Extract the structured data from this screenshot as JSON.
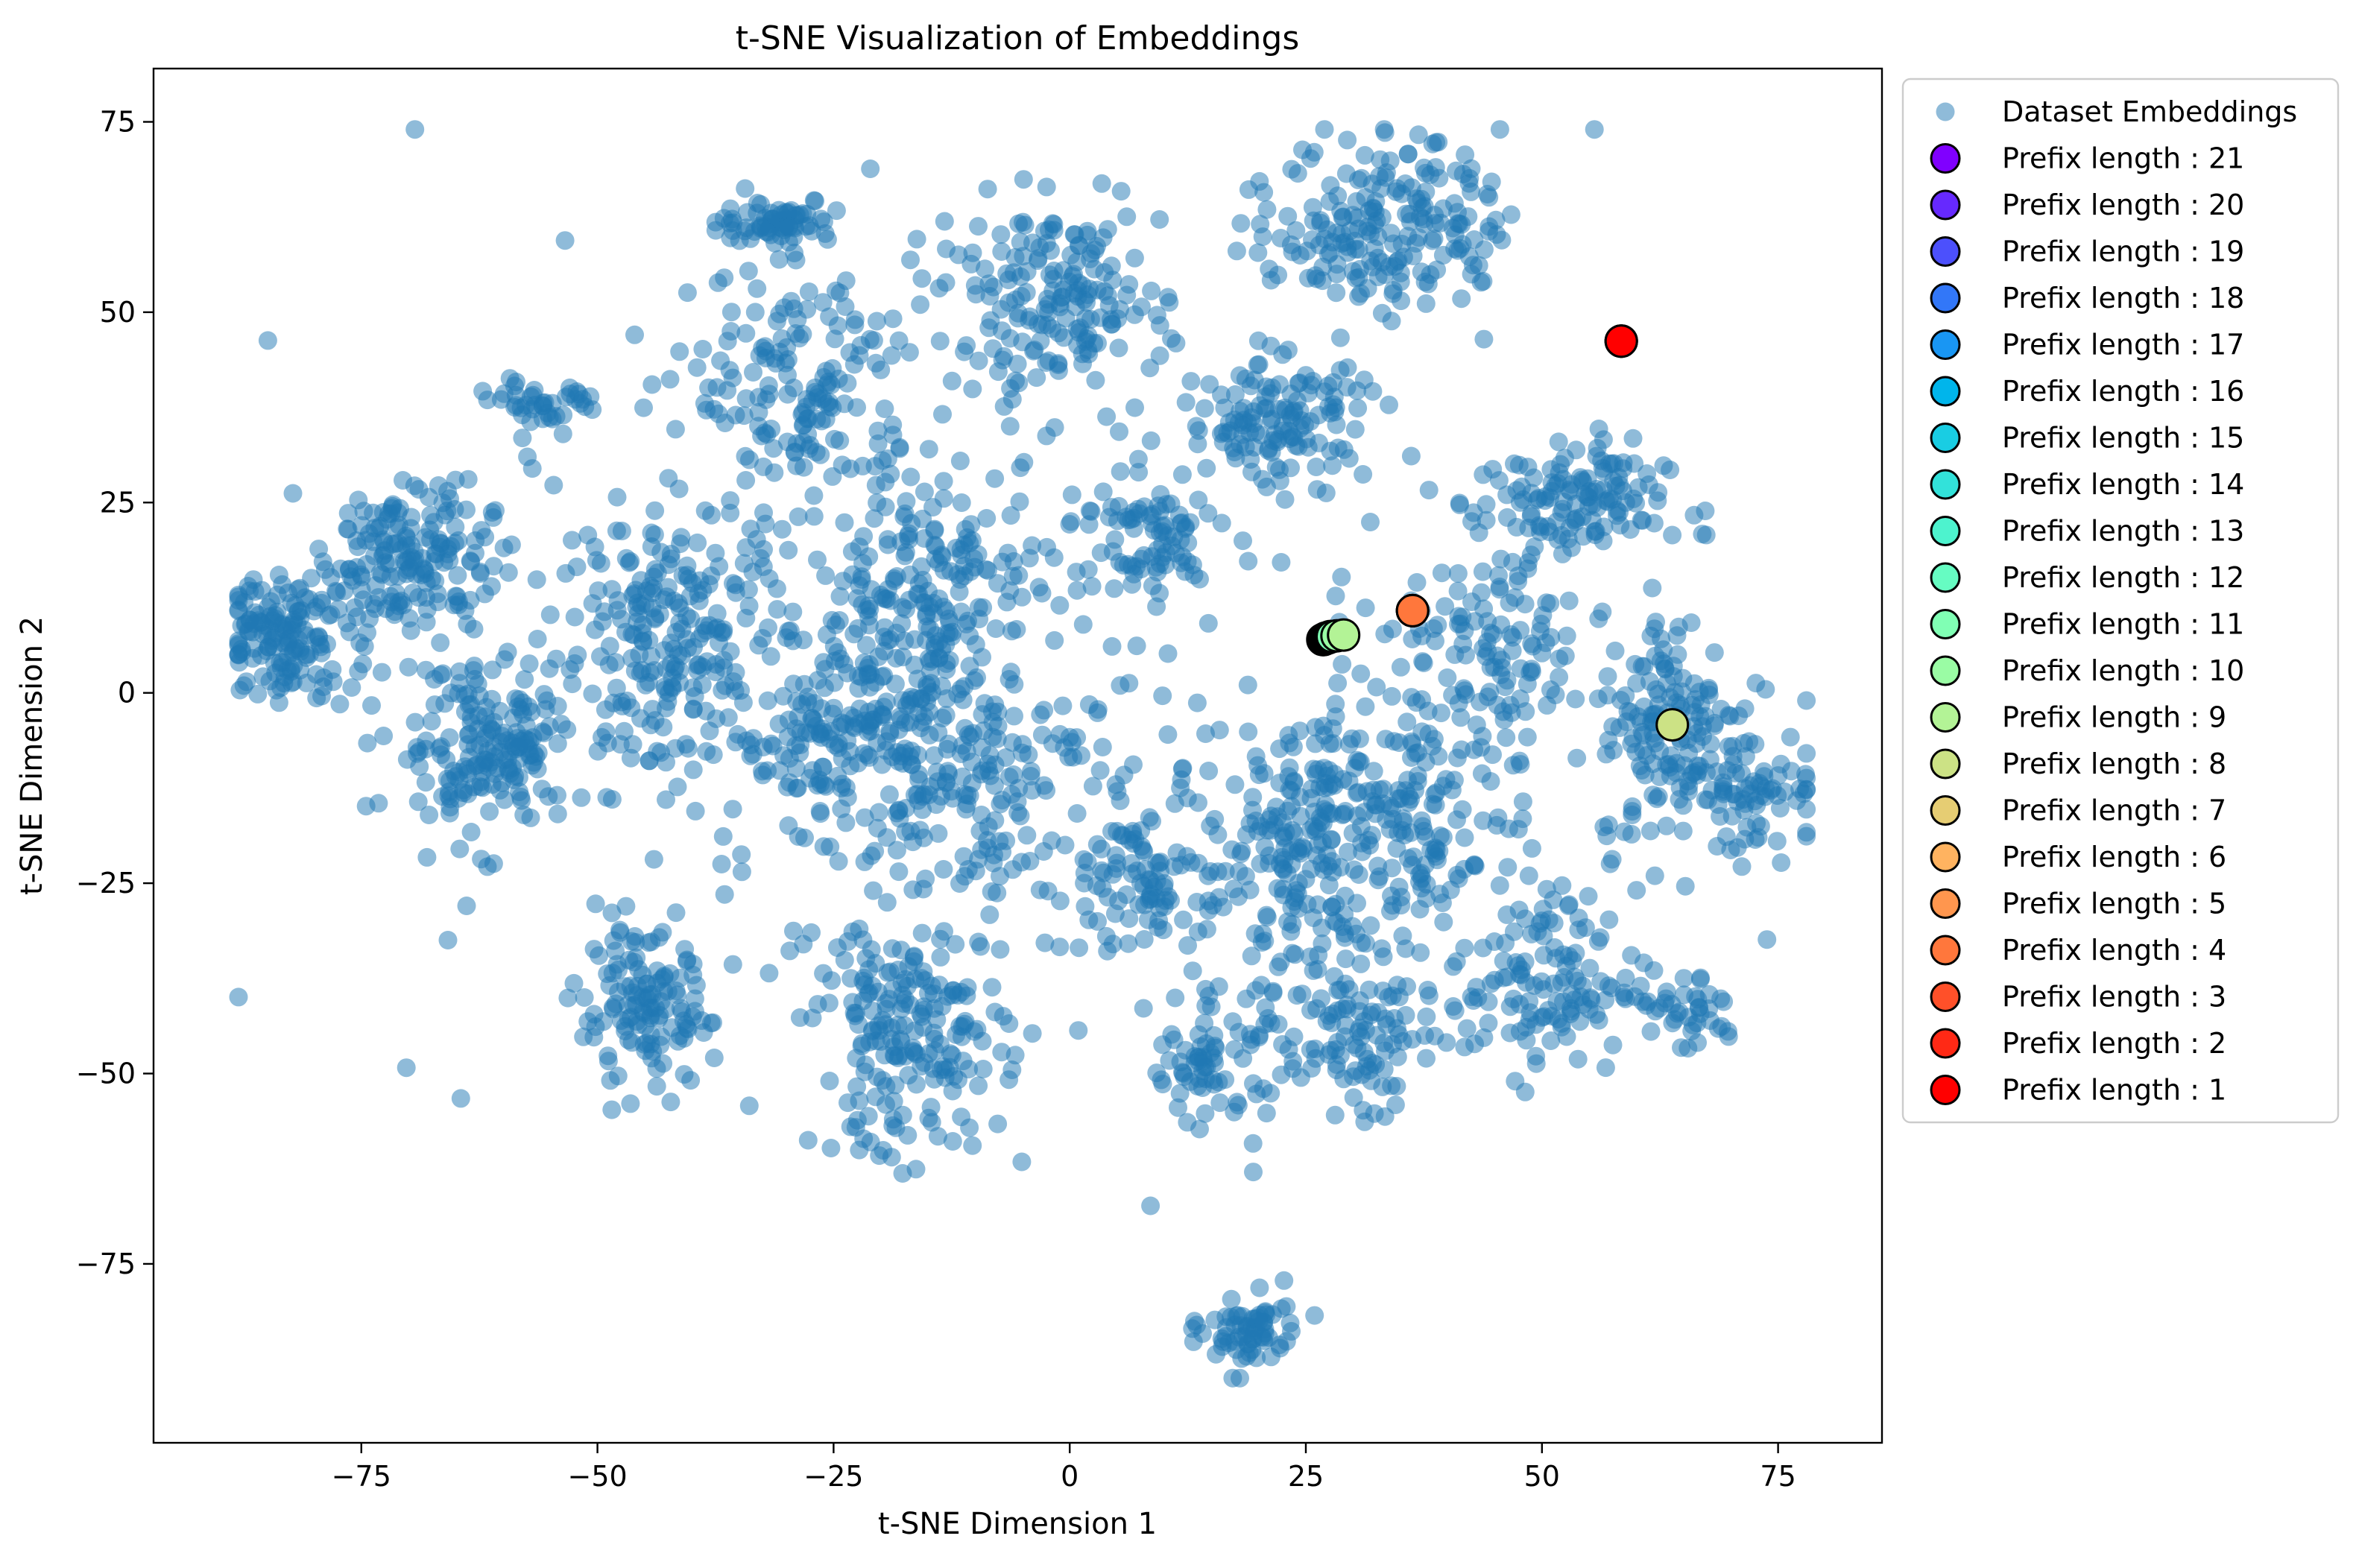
{
  "chart_data": {
    "type": "scatter",
    "title": "t-SNE Visualization of Embeddings",
    "xlabel": "t-SNE Dimension 1",
    "ylabel": "t-SNE Dimension 2",
    "xlim": [
      -97,
      86
    ],
    "ylim": [
      -98.5,
      82
    ],
    "xticks": [
      -75,
      -50,
      -25,
      0,
      25,
      50,
      75
    ],
    "yticks": [
      75,
      50,
      25,
      0,
      -25,
      -50,
      -75
    ],
    "xtick_labels": [
      "−75",
      "−50",
      "−25",
      "0",
      "25",
      "50",
      "75"
    ],
    "ytick_labels": [
      "75",
      "50",
      "25",
      "0",
      "−25",
      "−50",
      "−75"
    ],
    "grid": false,
    "legend_position": "outside-top-right",
    "dataset": {
      "name": "Dataset Embeddings",
      "color": "#1f77b4",
      "alpha": 0.5,
      "clusters": [
        {
          "cx": -83,
          "cy": 7,
          "sx": 3.5,
          "sy": 4,
          "n": 150
        },
        {
          "cx": -70,
          "cy": 18,
          "sx": 4.5,
          "sy": 5,
          "n": 170
        },
        {
          "cx": -62,
          "cy": -7,
          "sx": 5,
          "sy": 6,
          "n": 190
        },
        {
          "cx": -55,
          "cy": 38,
          "sx": 2.5,
          "sy": 1.5,
          "n": 40
        },
        {
          "cx": -45,
          "cy": -42,
          "sx": 3.5,
          "sy": 5,
          "n": 130
        },
        {
          "cx": -42,
          "cy": 8,
          "sx": 6,
          "sy": 9,
          "n": 220
        },
        {
          "cx": -31,
          "cy": 62,
          "sx": 3,
          "sy": 1.5,
          "n": 70
        },
        {
          "cx": -28,
          "cy": 40,
          "sx": 6,
          "sy": 8,
          "n": 160
        },
        {
          "cx": -22,
          "cy": -5,
          "sx": 7,
          "sy": 7,
          "n": 220
        },
        {
          "cx": -17,
          "cy": -45,
          "sx": 5,
          "sy": 8,
          "n": 200
        },
        {
          "cx": -14,
          "cy": 15,
          "sx": 6,
          "sy": 6,
          "n": 150
        },
        {
          "cx": -2,
          "cy": 52,
          "sx": 6,
          "sy": 6,
          "n": 170
        },
        {
          "cx": -10,
          "cy": -10,
          "sx": 6,
          "sy": 8,
          "n": 130
        },
        {
          "cx": 8,
          "cy": 20,
          "sx": 4,
          "sy": 4,
          "n": 80
        },
        {
          "cx": 9,
          "cy": -25,
          "sx": 3.5,
          "sy": 6,
          "n": 90
        },
        {
          "cx": 15,
          "cy": -48,
          "sx": 3,
          "sy": 4,
          "n": 70
        },
        {
          "cx": 19,
          "cy": -84,
          "sx": 2.5,
          "sy": 2.5,
          "n": 70
        },
        {
          "cx": 22,
          "cy": 36,
          "sx": 5,
          "sy": 4,
          "n": 130
        },
        {
          "cx": 24,
          "cy": -22,
          "sx": 5,
          "sy": 9,
          "n": 190
        },
        {
          "cx": 30,
          "cy": -45,
          "sx": 3.5,
          "sy": 5,
          "n": 90
        },
        {
          "cx": 34,
          "cy": 62,
          "sx": 6,
          "sy": 6,
          "n": 200
        },
        {
          "cx": 37,
          "cy": -15,
          "sx": 6,
          "sy": 7,
          "n": 140
        },
        {
          "cx": 45,
          "cy": 5,
          "sx": 5,
          "sy": 6,
          "n": 100
        },
        {
          "cx": 53,
          "cy": 25,
          "sx": 5,
          "sy": 4,
          "n": 130
        },
        {
          "cx": 50,
          "cy": -38,
          "sx": 5,
          "sy": 6,
          "n": 130
        },
        {
          "cx": 64,
          "cy": -5,
          "sx": 4,
          "sy": 8,
          "n": 150
        },
        {
          "cx": 73,
          "cy": -12,
          "sx": 3,
          "sy": 4,
          "n": 60
        },
        {
          "cx": 65,
          "cy": -42,
          "sx": 3,
          "sy": 3,
          "n": 40
        },
        {
          "cx": 0,
          "cy": 0,
          "sx": 35,
          "sy": 30,
          "n": 250
        }
      ]
    },
    "series": [
      {
        "name": "Prefix length : 21",
        "color": "#8000ff",
        "x": 26.8,
        "y": 7.0
      },
      {
        "name": "Prefix length : 20",
        "color": "#6629fe",
        "x": 26.9,
        "y": 7.0
      },
      {
        "name": "Prefix length : 19",
        "color": "#4c50fc",
        "x": 27.0,
        "y": 7.1
      },
      {
        "name": "Prefix length : 18",
        "color": "#3277f8",
        "x": 27.0,
        "y": 7.1
      },
      {
        "name": "Prefix length : 17",
        "color": "#1996f3",
        "x": 27.1,
        "y": 7.2
      },
      {
        "name": "Prefix length : 16",
        "color": "#00b5eb",
        "x": 27.2,
        "y": 7.2
      },
      {
        "name": "Prefix length : 15",
        "color": "#19cde3",
        "x": 27.3,
        "y": 7.2
      },
      {
        "name": "Prefix length : 14",
        "color": "#32e2da",
        "x": 27.4,
        "y": 7.3
      },
      {
        "name": "Prefix length : 13",
        "color": "#4df3ce",
        "x": 27.5,
        "y": 7.3
      },
      {
        "name": "Prefix length : 12",
        "color": "#66fcc2",
        "x": 27.6,
        "y": 7.4
      },
      {
        "name": "Prefix length : 11",
        "color": "#80ffb4",
        "x": 27.8,
        "y": 7.4
      },
      {
        "name": "Prefix length : 10",
        "color": "#9afca4",
        "x": 28.3,
        "y": 7.5
      },
      {
        "name": "Prefix length : 9",
        "color": "#b3f396",
        "x": 29.0,
        "y": 7.6
      },
      {
        "name": "Prefix length : 8",
        "color": "#cce285",
        "x": 63.8,
        "y": -4.2
      },
      {
        "name": "Prefix length : 7",
        "color": "#e6cd73",
        "x": 36.3,
        "y": 10.8
      },
      {
        "name": "Prefix length : 6",
        "color": "#ffb360",
        "x": 36.3,
        "y": 10.8
      },
      {
        "name": "Prefix length : 5",
        "color": "#ff964e",
        "x": 36.3,
        "y": 10.8
      },
      {
        "name": "Prefix length : 4",
        "color": "#ff773c",
        "x": 36.3,
        "y": 10.8
      },
      {
        "name": "Prefix length : 3",
        "color": "#ff5029",
        "x": 58.4,
        "y": 46.2
      },
      {
        "name": "Prefix length : 2",
        "color": "#ff2915",
        "x": 58.4,
        "y": 46.2
      },
      {
        "name": "Prefix length : 1",
        "color": "#ff0000",
        "x": 58.4,
        "y": 46.2
      }
    ]
  }
}
